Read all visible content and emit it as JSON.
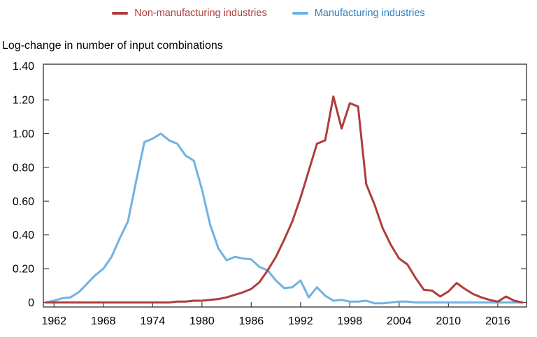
{
  "chart_data": {
    "type": "line",
    "title": "Log-change in number of input combinations",
    "legend_position": "top-center",
    "grid": false,
    "x": [
      1961,
      1962,
      1963,
      1964,
      1965,
      1966,
      1967,
      1968,
      1969,
      1970,
      1971,
      1972,
      1973,
      1974,
      1975,
      1976,
      1977,
      1978,
      1979,
      1980,
      1981,
      1982,
      1983,
      1984,
      1985,
      1986,
      1987,
      1988,
      1989,
      1990,
      1991,
      1992,
      1993,
      1994,
      1995,
      1996,
      1997,
      1998,
      1999,
      2000,
      2001,
      2002,
      2003,
      2004,
      2005,
      2006,
      2007,
      2008,
      2009,
      2010,
      2011,
      2012,
      2013,
      2014,
      2015,
      2016,
      2017,
      2018,
      2019
    ],
    "series": [
      {
        "name": "Non-manufacturing industries",
        "color": "#af3d3b",
        "label_color": "#af3d3b",
        "values": [
          0,
          0,
          0,
          0,
          0,
          0,
          0,
          0,
          0,
          0,
          0,
          0,
          0,
          0,
          0,
          0,
          0.005,
          0.005,
          0.01,
          0.01,
          0.015,
          0.02,
          0.03,
          0.045,
          0.06,
          0.08,
          0.12,
          0.19,
          0.27,
          0.37,
          0.48,
          0.62,
          0.78,
          0.94,
          0.96,
          1.22,
          1.03,
          1.18,
          1.16,
          0.7,
          0.58,
          0.44,
          0.34,
          0.26,
          0.225,
          0.145,
          0.075,
          0.07,
          0.035,
          0.065,
          0.115,
          0.08,
          0.05,
          0.03,
          0.015,
          0.005,
          0.035,
          0.01,
          0
        ]
      },
      {
        "name": "Manufacturing industries",
        "color": "#70b2e2",
        "label_color": "#2b7fc0",
        "values": [
          0,
          0.01,
          0.025,
          0.03,
          0.06,
          0.11,
          0.16,
          0.2,
          0.27,
          0.38,
          0.48,
          0.72,
          0.95,
          0.97,
          1.0,
          0.96,
          0.94,
          0.87,
          0.84,
          0.67,
          0.46,
          0.32,
          0.25,
          0.27,
          0.26,
          0.255,
          0.21,
          0.19,
          0.13,
          0.085,
          0.09,
          0.13,
          0.03,
          0.09,
          0.04,
          0.01,
          0.015,
          0.005,
          0.005,
          0.01,
          -0.005,
          -0.005,
          0,
          0.005,
          0.005,
          0,
          0,
          0,
          0,
          0,
          0,
          0,
          0,
          0,
          0,
          0,
          0,
          0,
          0
        ]
      }
    ],
    "xticks": [
      1962,
      1968,
      1974,
      1980,
      1986,
      1992,
      1998,
      2004,
      2010,
      2016
    ],
    "yticks": [
      0,
      0.2,
      0.4,
      0.6,
      0.8,
      1.0,
      1.2,
      1.4
    ],
    "ytick_labels": [
      "0",
      "0.20",
      "0.40",
      "0.60",
      "0.80",
      "1.00",
      "1.20",
      "1.40"
    ],
    "xlim": [
      1960.7,
      2019.5
    ],
    "ylim": [
      -0.027,
      1.411
    ],
    "xlabel": "",
    "ylabel": "Log-change in number of input combinations"
  }
}
